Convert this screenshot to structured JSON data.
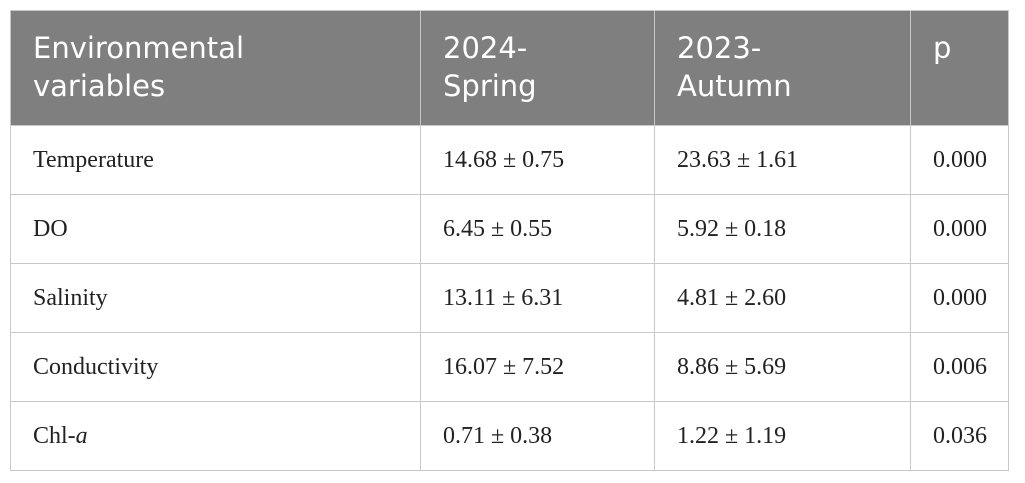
{
  "table": {
    "header": [
      [
        "Environmental",
        "variables"
      ],
      [
        "2024-",
        "Spring"
      ],
      [
        "2023-",
        "Autumn"
      ],
      [
        "p"
      ]
    ],
    "rows": [
      [
        [
          "Temperature"
        ],
        "14.68 ± 0.75",
        "23.63 ± 1.61",
        "0.000"
      ],
      [
        [
          "DO"
        ],
        "6.45 ± 0.55",
        "5.92 ± 0.18",
        "0.000"
      ],
      [
        [
          "Salinity"
        ],
        "13.11 ± 6.31",
        "4.81 ± 2.60",
        "0.000"
      ],
      [
        [
          "Conductivity"
        ],
        "16.07 ± 7.52",
        "8.86 ± 5.69",
        "0.006"
      ],
      [
        [
          "Chl-",
          "a"
        ],
        "0.71 ± 0.38",
        "1.22 ± 1.19",
        "0.036"
      ]
    ]
  }
}
